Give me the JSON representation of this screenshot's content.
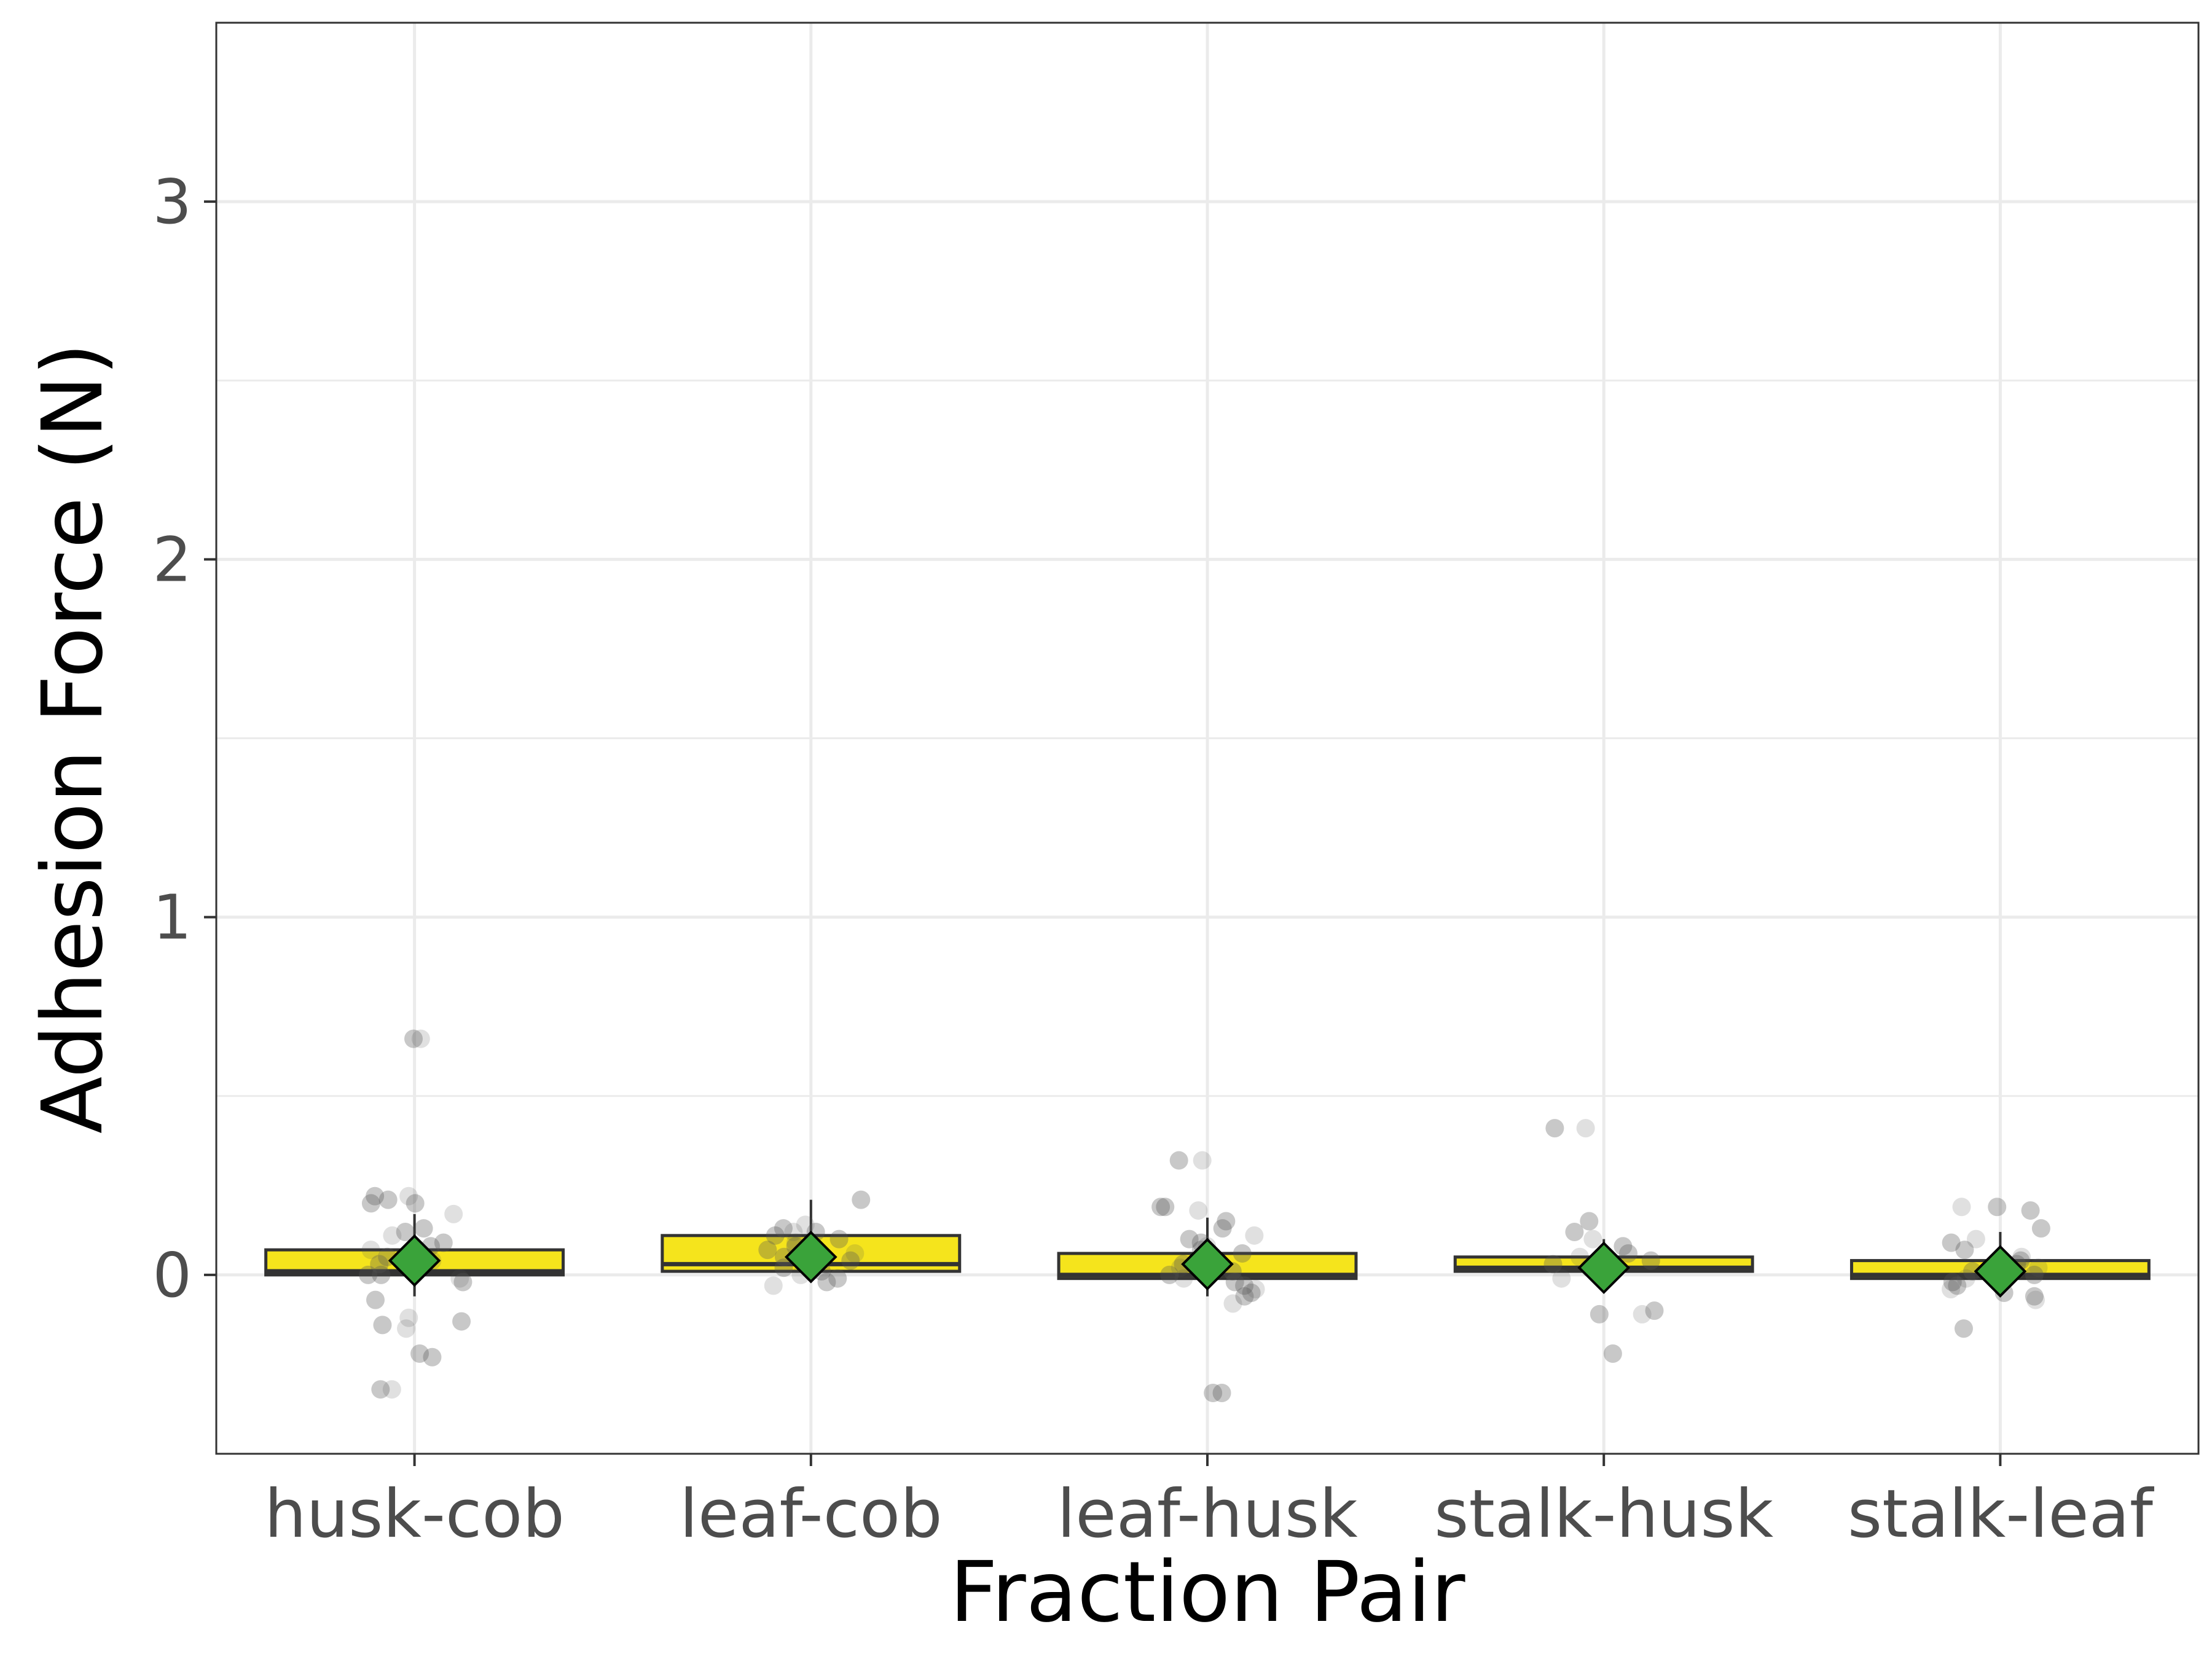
{
  "chart_data": {
    "type": "box",
    "title": "",
    "xlabel": "Fraction Pair",
    "ylabel": "Adhesion Force (N)",
    "ylim": [
      -0.5,
      3.5
    ],
    "yticks": [
      0,
      1,
      2,
      3
    ],
    "grid": true,
    "legend": "none",
    "colors": {
      "box_fill": "#f5e41c",
      "box_line": "#333333",
      "mean_marker": "#3aa33a",
      "point": "#555555",
      "grid": "#ebebeb",
      "panel_border": "#333333"
    },
    "categories": [
      "husk-cob",
      "leaf-cob",
      "leaf-husk",
      "stalk-husk",
      "stalk-leaf"
    ],
    "boxes": [
      {
        "category": "husk-cob",
        "q1": 0.0,
        "median": 0.01,
        "q3": 0.07,
        "whisker_low": -0.06,
        "whisker_high": 0.17,
        "mean": 0.04
      },
      {
        "category": "leaf-cob",
        "q1": 0.01,
        "median": 0.03,
        "q3": 0.11,
        "whisker_low": -0.01,
        "whisker_high": 0.21,
        "mean": 0.05
      },
      {
        "category": "leaf-husk",
        "q1": -0.01,
        "median": 0.0,
        "q3": 0.06,
        "whisker_low": -0.06,
        "whisker_high": 0.16,
        "mean": 0.03
      },
      {
        "category": "stalk-husk",
        "q1": 0.01,
        "median": 0.02,
        "q3": 0.05,
        "whisker_low": 0.0,
        "whisker_high": 0.1,
        "mean": 0.02
      },
      {
        "category": "stalk-leaf",
        "q1": -0.01,
        "median": 0.0,
        "q3": 0.04,
        "whisker_low": -0.04,
        "whisker_high": 0.12,
        "mean": 0.01
      }
    ],
    "points": [
      {
        "category": "husk-cob",
        "values": [
          0.66,
          0.66,
          0.22,
          0.21,
          0.22,
          0.2,
          0.2,
          0.17,
          0.13,
          0.12,
          0.11,
          0.09,
          0.08,
          0.07,
          0.06,
          0.05,
          0.04,
          0.03,
          0.02,
          0.01,
          0.0,
          0.0,
          -0.01,
          -0.02,
          -0.07,
          -0.12,
          -0.13,
          -0.14,
          -0.15,
          -0.22,
          -0.23,
          -0.32,
          -0.32
        ]
      },
      {
        "category": "leaf-cob",
        "values": [
          0.21,
          0.14,
          0.13,
          0.12,
          0.12,
          0.11,
          0.1,
          0.09,
          0.08,
          0.07,
          0.06,
          0.05,
          0.04,
          0.03,
          0.02,
          0.01,
          0.0,
          -0.01,
          -0.02,
          -0.03
        ]
      },
      {
        "category": "leaf-husk",
        "values": [
          0.32,
          0.32,
          0.19,
          0.19,
          0.18,
          0.15,
          0.13,
          0.11,
          0.1,
          0.09,
          0.08,
          0.07,
          0.06,
          0.05,
          0.04,
          0.03,
          0.02,
          0.01,
          0.0,
          -0.01,
          -0.02,
          -0.03,
          -0.04,
          -0.05,
          -0.06,
          -0.08,
          -0.33,
          -0.33
        ]
      },
      {
        "category": "stalk-husk",
        "values": [
          0.41,
          0.41,
          0.15,
          0.12,
          0.1,
          0.08,
          0.06,
          0.05,
          0.04,
          0.03,
          0.02,
          0.01,
          0.0,
          -0.01,
          -0.1,
          -0.11,
          -0.11,
          -0.22
        ]
      },
      {
        "category": "stalk-leaf",
        "values": [
          0.19,
          0.19,
          0.18,
          0.13,
          0.1,
          0.09,
          0.07,
          0.05,
          0.04,
          0.03,
          0.02,
          0.01,
          0.0,
          -0.01,
          -0.02,
          -0.03,
          -0.04,
          -0.05,
          -0.06,
          -0.07,
          -0.15
        ]
      }
    ]
  }
}
